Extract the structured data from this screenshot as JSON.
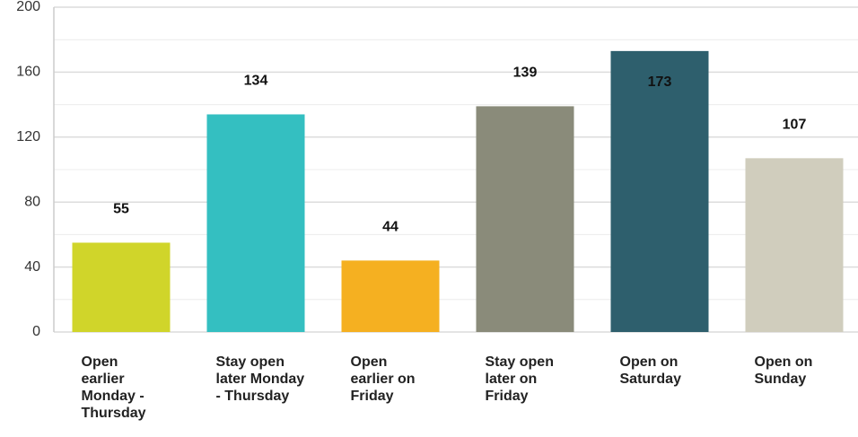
{
  "chart_data": {
    "type": "bar",
    "categories": [
      "Open earlier Monday - Thursday",
      "Stay open later Monday - Thursday",
      "Open earlier on Friday",
      "Stay open later on Friday",
      "Open on Saturday",
      "Open on Sunday"
    ],
    "values": [
      55,
      134,
      44,
      139,
      173,
      107
    ],
    "colors": [
      "#d0d52a",
      "#34bfc1",
      "#f5b021",
      "#8a8b7a",
      "#2e5f6d",
      "#d0cdbd"
    ],
    "ylim": [
      0,
      200
    ],
    "yticks": [
      0,
      40,
      80,
      120,
      160,
      200
    ],
    "minor_yticks": [
      20,
      60,
      100,
      140,
      180
    ],
    "grid": true
  }
}
